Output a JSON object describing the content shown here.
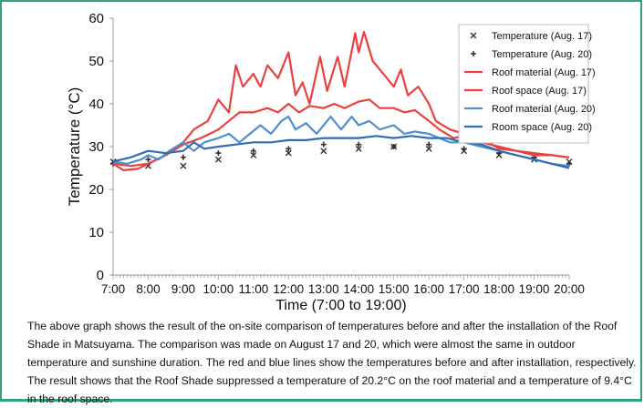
{
  "chart_data": {
    "type": "line",
    "xlabel": "Time (7:00 to 19:00)",
    "ylabel": "Temperature (°C)",
    "ylim": [
      0,
      60
    ],
    "yticks": [
      0,
      10,
      20,
      30,
      40,
      50,
      60
    ],
    "xlim": [
      7,
      20
    ],
    "xtick_labels": [
      "7:00",
      "8:00",
      "9:00",
      "10:00",
      "11:00",
      "12:00",
      "13:00",
      "14:00",
      "15:00",
      "16:00",
      "17:00",
      "18:00",
      "19:00",
      "20:00"
    ],
    "legend_position": "top-right",
    "grid": false,
    "series": [
      {
        "name": "Temperature (Aug. 17)",
        "kind": "marker",
        "marker": "x",
        "color": "#333333",
        "points": [
          [
            7,
            26.5
          ],
          [
            8,
            25.5
          ],
          [
            9,
            25.5
          ],
          [
            10,
            27
          ],
          [
            11,
            28
          ],
          [
            12,
            28.5
          ],
          [
            13,
            29
          ],
          [
            14,
            29.5
          ],
          [
            15,
            30
          ],
          [
            16,
            29.5
          ],
          [
            17,
            29
          ],
          [
            18,
            28
          ],
          [
            19,
            27
          ],
          [
            20,
            26.5
          ]
        ]
      },
      {
        "name": "Temperature (Aug. 20)",
        "kind": "marker",
        "marker": "+",
        "color": "#333333",
        "points": [
          [
            7,
            26
          ],
          [
            8,
            27
          ],
          [
            9,
            27.5
          ],
          [
            10,
            28.5
          ],
          [
            11,
            29
          ],
          [
            12,
            29.5
          ],
          [
            13,
            30.5
          ],
          [
            14,
            30.5
          ],
          [
            15,
            30
          ],
          [
            16,
            30.5
          ],
          [
            17,
            29.5
          ],
          [
            18,
            28.5
          ],
          [
            19,
            27.5
          ],
          [
            20,
            26
          ]
        ]
      },
      {
        "name": "Roof material (Aug. 17)",
        "kind": "line",
        "color": "#e8413f",
        "points": [
          [
            7,
            26
          ],
          [
            7.3,
            24.5
          ],
          [
            7.7,
            24.8
          ],
          [
            8,
            26
          ],
          [
            8.5,
            28
          ],
          [
            9,
            31
          ],
          [
            9.3,
            34
          ],
          [
            9.7,
            36
          ],
          [
            10,
            41
          ],
          [
            10.3,
            38
          ],
          [
            10.5,
            49
          ],
          [
            10.7,
            44
          ],
          [
            11,
            47
          ],
          [
            11.2,
            44
          ],
          [
            11.4,
            49
          ],
          [
            11.7,
            46
          ],
          [
            12,
            52
          ],
          [
            12.2,
            42
          ],
          [
            12.4,
            45
          ],
          [
            12.6,
            40
          ],
          [
            12.9,
            51
          ],
          [
            13.1,
            43
          ],
          [
            13.4,
            51
          ],
          [
            13.6,
            44
          ],
          [
            13.9,
            56.5
          ],
          [
            14,
            52
          ],
          [
            14.15,
            56.8
          ],
          [
            14.4,
            50
          ],
          [
            14.7,
            47
          ],
          [
            15,
            44
          ],
          [
            15.2,
            48
          ],
          [
            15.4,
            42
          ],
          [
            15.7,
            44
          ],
          [
            16,
            40
          ],
          [
            16.2,
            36
          ],
          [
            16.6,
            34
          ],
          [
            17,
            33
          ],
          [
            17.5,
            32
          ],
          [
            18,
            29.5
          ],
          [
            18.5,
            29
          ],
          [
            19,
            28
          ],
          [
            19.5,
            28
          ],
          [
            20,
            27.5
          ]
        ]
      },
      {
        "name": "Roof space (Aug. 17)",
        "kind": "line",
        "color": "#e8413f",
        "points": [
          [
            7,
            26
          ],
          [
            7.5,
            25.5
          ],
          [
            8,
            26
          ],
          [
            8.5,
            28
          ],
          [
            9,
            30.5
          ],
          [
            9.5,
            32
          ],
          [
            10,
            34
          ],
          [
            10.3,
            36
          ],
          [
            10.6,
            38
          ],
          [
            11,
            38
          ],
          [
            11.4,
            39
          ],
          [
            11.7,
            38
          ],
          [
            12,
            40
          ],
          [
            12.3,
            38
          ],
          [
            12.6,
            39.5
          ],
          [
            13,
            39
          ],
          [
            13.3,
            40
          ],
          [
            13.6,
            39
          ],
          [
            14,
            40.5
          ],
          [
            14.3,
            41
          ],
          [
            14.6,
            39
          ],
          [
            15,
            39
          ],
          [
            15.3,
            38
          ],
          [
            15.6,
            38.5
          ],
          [
            16,
            36
          ],
          [
            16.3,
            34
          ],
          [
            16.7,
            32
          ],
          [
            17,
            32.5
          ],
          [
            17.5,
            31
          ],
          [
            18,
            30
          ],
          [
            18.5,
            29
          ],
          [
            19,
            28.5
          ],
          [
            19.5,
            28
          ],
          [
            20,
            27.5
          ]
        ]
      },
      {
        "name": "Roof material (Aug. 20)",
        "kind": "line",
        "color": "#4f8fcf",
        "points": [
          [
            7,
            26.5
          ],
          [
            7.4,
            26
          ],
          [
            7.8,
            27
          ],
          [
            8,
            28
          ],
          [
            8.3,
            27
          ],
          [
            8.6,
            29
          ],
          [
            9,
            31
          ],
          [
            9.3,
            29
          ],
          [
            9.6,
            31
          ],
          [
            10,
            32
          ],
          [
            10.3,
            33
          ],
          [
            10.6,
            31
          ],
          [
            10.9,
            33
          ],
          [
            11.2,
            35
          ],
          [
            11.5,
            33
          ],
          [
            11.8,
            36
          ],
          [
            12,
            37
          ],
          [
            12.2,
            34
          ],
          [
            12.5,
            35.5
          ],
          [
            12.8,
            33
          ],
          [
            13,
            35
          ],
          [
            13.2,
            37
          ],
          [
            13.5,
            34
          ],
          [
            13.8,
            37
          ],
          [
            14,
            35
          ],
          [
            14.3,
            36
          ],
          [
            14.6,
            34
          ],
          [
            15,
            35
          ],
          [
            15.3,
            33
          ],
          [
            15.6,
            33.5
          ],
          [
            16,
            33
          ],
          [
            16.3,
            32
          ],
          [
            16.6,
            31
          ],
          [
            17,
            31
          ],
          [
            17.5,
            30
          ],
          [
            18,
            29
          ],
          [
            18.5,
            28
          ],
          [
            19,
            27
          ],
          [
            19.5,
            26
          ],
          [
            20,
            25.5
          ]
        ]
      },
      {
        "name": "Room space (Aug. 20)",
        "kind": "line",
        "color": "#2f6db5",
        "points": [
          [
            7,
            26.5
          ],
          [
            7.5,
            27.5
          ],
          [
            8,
            29
          ],
          [
            8.5,
            28.5
          ],
          [
            9,
            29
          ],
          [
            9.3,
            31
          ],
          [
            9.6,
            29.5
          ],
          [
            10,
            30
          ],
          [
            10.5,
            30.5
          ],
          [
            11,
            31
          ],
          [
            11.5,
            31
          ],
          [
            12,
            31.5
          ],
          [
            12.5,
            31.5
          ],
          [
            13,
            32
          ],
          [
            13.5,
            32
          ],
          [
            14,
            32
          ],
          [
            14.5,
            32.5
          ],
          [
            15,
            32
          ],
          [
            15.5,
            32.5
          ],
          [
            16,
            32
          ],
          [
            16.5,
            32
          ],
          [
            17,
            31
          ],
          [
            17.5,
            30.5
          ],
          [
            18,
            29
          ],
          [
            18.5,
            28
          ],
          [
            19,
            27
          ],
          [
            19.5,
            26
          ],
          [
            20,
            25
          ]
        ]
      }
    ]
  },
  "caption": "The above graph shows the result of the on-site comparison of temperatures before and after the installation of the Roof Shade in Matsuyama. The comparison was made on August 17 and 20, which were almost the same in outdoor temperature and sunshine duration. The red and blue lines show the temperatures before and after installation, respectively. The result shows that the Roof Shade suppressed a temperature of 20.2°C on the roof material and a temperature of 9.4°C in the roof space."
}
